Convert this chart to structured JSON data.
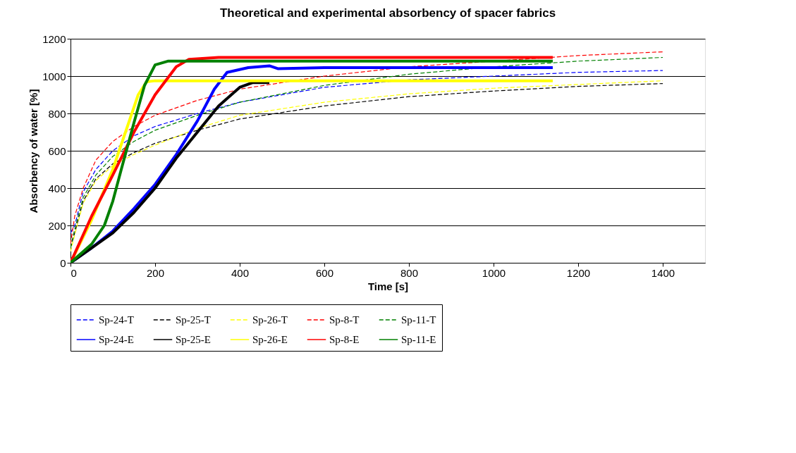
{
  "chart_data": {
    "type": "line",
    "title": "Theoretical and experimental absorbency of spacer fabrics",
    "xlabel": "Time [s]",
    "ylabel": "Absorbency of water [%]",
    "xlim": [
      0,
      1500
    ],
    "xticks": [
      0,
      200,
      400,
      600,
      800,
      1000,
      1200,
      1400
    ],
    "ylim": [
      0,
      1200
    ],
    "yticks": [
      0,
      200,
      400,
      600,
      800,
      1000,
      1200
    ],
    "grid": "y",
    "legend": "bottom",
    "marker": "none",
    "series": [
      {
        "name": "Sp-24-T",
        "color": "#0000ff",
        "line_style": "dashed",
        "x": [
          0,
          10,
          30,
          60,
          100,
          150,
          200,
          300,
          400,
          600,
          800,
          1000,
          1200,
          1400
        ],
        "values": [
          160,
          200,
          380,
          500,
          600,
          680,
          730,
          800,
          860,
          940,
          980,
          1000,
          1020,
          1030
        ]
      },
      {
        "name": "Sp-25-T",
        "color": "#000000",
        "line_style": "dashed",
        "x": [
          0,
          10,
          30,
          60,
          100,
          150,
          200,
          300,
          400,
          600,
          800,
          1000,
          1200,
          1400
        ],
        "values": [
          80,
          160,
          330,
          450,
          530,
          590,
          640,
          710,
          770,
          840,
          890,
          920,
          945,
          960
        ]
      },
      {
        "name": "Sp-26-T",
        "color": "#ffff00",
        "line_style": "dashed",
        "x": [
          0,
          10,
          30,
          60,
          100,
          150,
          200,
          300,
          400,
          600,
          800,
          1000,
          1200,
          1400
        ],
        "values": [
          60,
          150,
          320,
          440,
          520,
          580,
          630,
          720,
          790,
          860,
          905,
          935,
          955,
          975
        ]
      },
      {
        "name": "Sp-8-T",
        "color": "#ff0000",
        "line_style": "dashed",
        "x": [
          0,
          10,
          30,
          60,
          100,
          150,
          200,
          300,
          400,
          600,
          800,
          1000,
          1200,
          1400
        ],
        "values": [
          100,
          250,
          400,
          550,
          650,
          730,
          790,
          870,
          930,
          1000,
          1050,
          1080,
          1110,
          1130
        ]
      },
      {
        "name": "Sp-11-T",
        "color": "#008000",
        "line_style": "dashed",
        "x": [
          0,
          10,
          30,
          60,
          100,
          150,
          200,
          300,
          400,
          600,
          800,
          1000,
          1200,
          1400
        ],
        "values": [
          80,
          180,
          350,
          470,
          570,
          650,
          710,
          790,
          860,
          950,
          1010,
          1050,
          1080,
          1100
        ]
      },
      {
        "name": "Sp-24-E",
        "color": "#0000ff",
        "line_style": "solid",
        "x": [
          0,
          50,
          100,
          150,
          200,
          250,
          300,
          340,
          370,
          420,
          470,
          490,
          600,
          1140
        ],
        "values": [
          0,
          80,
          170,
          290,
          420,
          580,
          760,
          930,
          1020,
          1045,
          1055,
          1040,
          1045,
          1045
        ]
      },
      {
        "name": "Sp-25-E",
        "color": "#000000",
        "line_style": "solid",
        "x": [
          0,
          50,
          100,
          150,
          200,
          250,
          300,
          350,
          400,
          430,
          470
        ],
        "values": [
          0,
          80,
          160,
          270,
          400,
          560,
          700,
          840,
          940,
          965,
          965
        ]
      },
      {
        "name": "Sp-26-E",
        "color": "#ffff00",
        "line_style": "solid",
        "x": [
          0,
          50,
          100,
          130,
          160,
          180,
          200,
          1140
        ],
        "values": [
          0,
          230,
          500,
          700,
          900,
          970,
          975,
          975
        ]
      },
      {
        "name": "Sp-8-E",
        "color": "#ff0000",
        "line_style": "solid",
        "x": [
          0,
          50,
          100,
          150,
          200,
          250,
          280,
          350,
          1140
        ],
        "values": [
          0,
          250,
          470,
          700,
          900,
          1050,
          1090,
          1100,
          1100
        ]
      },
      {
        "name": "Sp-11-E",
        "color": "#008000",
        "line_style": "solid",
        "x": [
          0,
          50,
          80,
          100,
          120,
          150,
          175,
          200,
          230,
          1140
        ],
        "values": [
          0,
          100,
          200,
          330,
          500,
          750,
          950,
          1060,
          1080,
          1080
        ]
      }
    ]
  }
}
